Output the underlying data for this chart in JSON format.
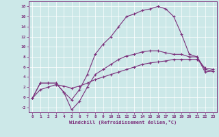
{
  "title": "",
  "xlabel": "Windchill (Refroidissement éolien,°C)",
  "bg_color": "#cce8e8",
  "grid_color": "#ffffff",
  "line_color": "#7b2f7b",
  "xlim": [
    -0.5,
    23.5
  ],
  "ylim": [
    -3.0,
    19.0
  ],
  "xticks": [
    0,
    1,
    2,
    3,
    4,
    5,
    6,
    7,
    8,
    9,
    10,
    11,
    12,
    13,
    14,
    15,
    16,
    17,
    18,
    19,
    20,
    21,
    22,
    23
  ],
  "yticks": [
    -2,
    0,
    2,
    4,
    6,
    8,
    10,
    12,
    14,
    16,
    18
  ],
  "line1_x": [
    0,
    1,
    2,
    3,
    4,
    5,
    6,
    7,
    8,
    9,
    10,
    11,
    12,
    13,
    14,
    15,
    16,
    17,
    18,
    19,
    20,
    21,
    22,
    23
  ],
  "line1_y": [
    -0.2,
    2.8,
    2.8,
    2.8,
    1.0,
    -0.5,
    1.5,
    4.5,
    8.5,
    10.5,
    12.0,
    14.0,
    16.0,
    16.5,
    17.2,
    17.5,
    18.0,
    17.5,
    16.0,
    12.5,
    8.5,
    8.0,
    5.0,
    5.2
  ],
  "line2_x": [
    0,
    1,
    2,
    3,
    4,
    5,
    6,
    7,
    8,
    9,
    10,
    11,
    12,
    13,
    14,
    15,
    16,
    17,
    18,
    19,
    20,
    21,
    22,
    23
  ],
  "line2_y": [
    -0.2,
    2.8,
    2.8,
    2.8,
    1.0,
    -2.5,
    -0.8,
    2.0,
    4.5,
    5.5,
    6.5,
    7.5,
    8.2,
    8.5,
    9.0,
    9.2,
    9.2,
    8.8,
    8.5,
    8.5,
    8.0,
    8.0,
    5.5,
    5.2
  ],
  "line3_x": [
    0,
    1,
    2,
    3,
    4,
    5,
    6,
    7,
    8,
    9,
    10,
    11,
    12,
    13,
    14,
    15,
    16,
    17,
    18,
    19,
    20,
    21,
    22,
    23
  ],
  "line3_y": [
    -0.2,
    1.5,
    2.0,
    2.5,
    2.2,
    1.8,
    2.2,
    2.8,
    3.5,
    4.0,
    4.5,
    5.0,
    5.5,
    6.0,
    6.5,
    6.8,
    7.0,
    7.2,
    7.5,
    7.5,
    7.5,
    7.5,
    5.8,
    5.5
  ]
}
